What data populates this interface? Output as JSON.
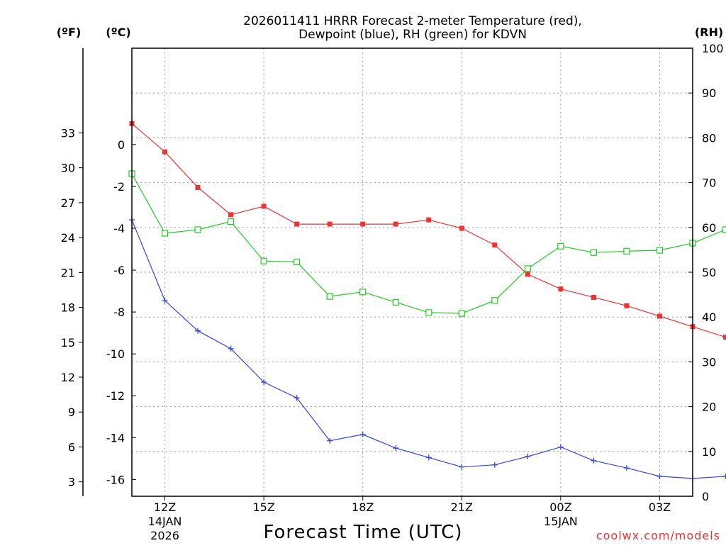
{
  "chart_data": {
    "type": "line",
    "title_line1": "2026011411 HRRR Forecast 2-meter Temperature (red),",
    "title_line2": "Dewpoint (blue), RH (green) for KDVN",
    "xlabel": "Forecast Time (UTC)",
    "credit": "coolwx.com/models",
    "colors": {
      "temperature": "#ee3333",
      "dewpoint": "#3344ee",
      "rh": "#22cc22"
    },
    "axes": {
      "f_label": "(ºF)",
      "c_label": "(ºC)",
      "rh_label": "(RH)",
      "c_range": [
        -16.8,
        4.6
      ],
      "rh_range": [
        0,
        100
      ],
      "x_range": [
        11,
        28
      ],
      "c_ticks": [
        "0",
        "-2",
        "-4",
        "-6",
        "-8",
        "-10",
        "-12",
        "-14",
        "-16"
      ],
      "c_tick_values": [
        0,
        -2,
        -4,
        -6,
        -8,
        -10,
        -12,
        -14,
        -16
      ],
      "f_ticks": [
        "33",
        "30",
        "27",
        "24",
        "21",
        "18",
        "15",
        "12",
        "9",
        "6",
        "3"
      ],
      "f_tick_values": [
        33,
        30,
        27,
        24,
        21,
        18,
        15,
        12,
        9,
        6,
        3
      ],
      "rh_ticks": [
        "100",
        "90",
        "80",
        "70",
        "60",
        "50",
        "40",
        "30",
        "20",
        "10",
        "0"
      ],
      "rh_tick_values": [
        100,
        90,
        80,
        70,
        60,
        50,
        40,
        30,
        20,
        10,
        0
      ]
    },
    "x_ticks": [
      {
        "hour": 12,
        "label": "12Z",
        "sub1": "14JAN",
        "sub2": "2026"
      },
      {
        "hour": 15,
        "label": "15Z",
        "sub1": "",
        "sub2": ""
      },
      {
        "hour": 18,
        "label": "18Z",
        "sub1": "",
        "sub2": ""
      },
      {
        "hour": 21,
        "label": "21Z",
        "sub1": "",
        "sub2": ""
      },
      {
        "hour": 24,
        "label": "00Z",
        "sub1": "15JAN",
        "sub2": ""
      },
      {
        "hour": 27,
        "label": "03Z",
        "sub1": "",
        "sub2": ""
      }
    ],
    "x_hours": [
      11,
      12,
      13,
      14,
      15,
      16,
      17,
      18,
      19,
      20,
      21,
      22,
      23,
      24,
      25,
      26,
      27,
      28,
      29
    ],
    "series": [
      {
        "name": "Temperature (°C)",
        "key": "temperature",
        "axis": "c",
        "marker": "square-filled",
        "values": [
          1.0,
          -0.35,
          -2.05,
          -3.35,
          -2.95,
          -3.8,
          -3.8,
          -3.8,
          -3.8,
          -3.6,
          -4.0,
          -4.8,
          -6.2,
          -6.9,
          -7.3,
          -7.7,
          -8.2,
          -8.7,
          -9.2
        ]
      },
      {
        "name": "Dewpoint (°C)",
        "key": "dewpoint",
        "axis": "c",
        "marker": "plus",
        "values": [
          -3.6,
          -7.45,
          -8.9,
          -9.75,
          -11.35,
          -12.1,
          -14.15,
          -13.85,
          -14.5,
          -14.95,
          -15.4,
          -15.3,
          -14.9,
          -14.45,
          -15.1,
          -15.45,
          -15.85,
          -15.95,
          -15.85
        ]
      },
      {
        "name": "RH (%)",
        "key": "rh",
        "axis": "rh",
        "marker": "square-open",
        "values": [
          72,
          58.7,
          59.5,
          61.3,
          52.5,
          52.3,
          44.6,
          45.6,
          43.3,
          41.0,
          40.8,
          43.7,
          50.8,
          55.8,
          54.4,
          54.7,
          54.9,
          56.5,
          59.5
        ]
      }
    ]
  }
}
